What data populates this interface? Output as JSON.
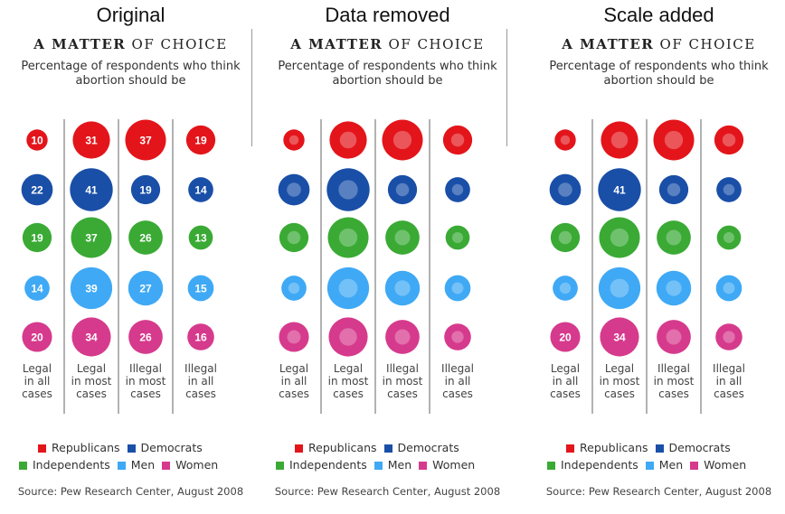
{
  "panels": [
    {
      "label": "Original",
      "show_values": "all"
    },
    {
      "label": "Data removed",
      "show_values": "none"
    },
    {
      "label": "Scale added",
      "show_values": "scale"
    }
  ],
  "chart": {
    "title_bold": "A MATTER",
    "title_light": "OF CHOICE",
    "subtitle_line1": "Percentage of respondents who think",
    "subtitle_line2": "abortion should be"
  },
  "chart_data": {
    "type": "bubble-grid",
    "title": "A MATTER OF CHOICE",
    "subtitle": "Percentage of respondents who think abortion should be",
    "categories": [
      [
        "Legal",
        "in all",
        "cases"
      ],
      [
        "Legal",
        "in most",
        "cases"
      ],
      [
        "Illegal",
        "in most",
        "cases"
      ],
      [
        "Illegal",
        "in all",
        "cases"
      ]
    ],
    "series": [
      {
        "name": "Republicans",
        "color": "#e3151b",
        "values": [
          10,
          31,
          37,
          19
        ]
      },
      {
        "name": "Democrats",
        "color": "#1a4fa8",
        "values": [
          22,
          41,
          19,
          14
        ]
      },
      {
        "name": "Independents",
        "color": "#3aaa35",
        "values": [
          19,
          37,
          26,
          13
        ]
      },
      {
        "name": "Men",
        "color": "#3fa9f5",
        "values": [
          14,
          39,
          27,
          15
        ]
      },
      {
        "name": "Women",
        "color": "#d63a8c",
        "values": [
          20,
          34,
          26,
          16
        ]
      }
    ],
    "scale_labels_shown": [
      [
        1,
        1
      ],
      [
        4,
        0
      ],
      [
        4,
        1
      ]
    ]
  },
  "legend": {
    "row1": [
      "Republicans",
      "Democrats"
    ],
    "row2": [
      "Independents",
      "Men",
      "Women"
    ]
  },
  "source": "Source: Pew Research Center, August 2008"
}
